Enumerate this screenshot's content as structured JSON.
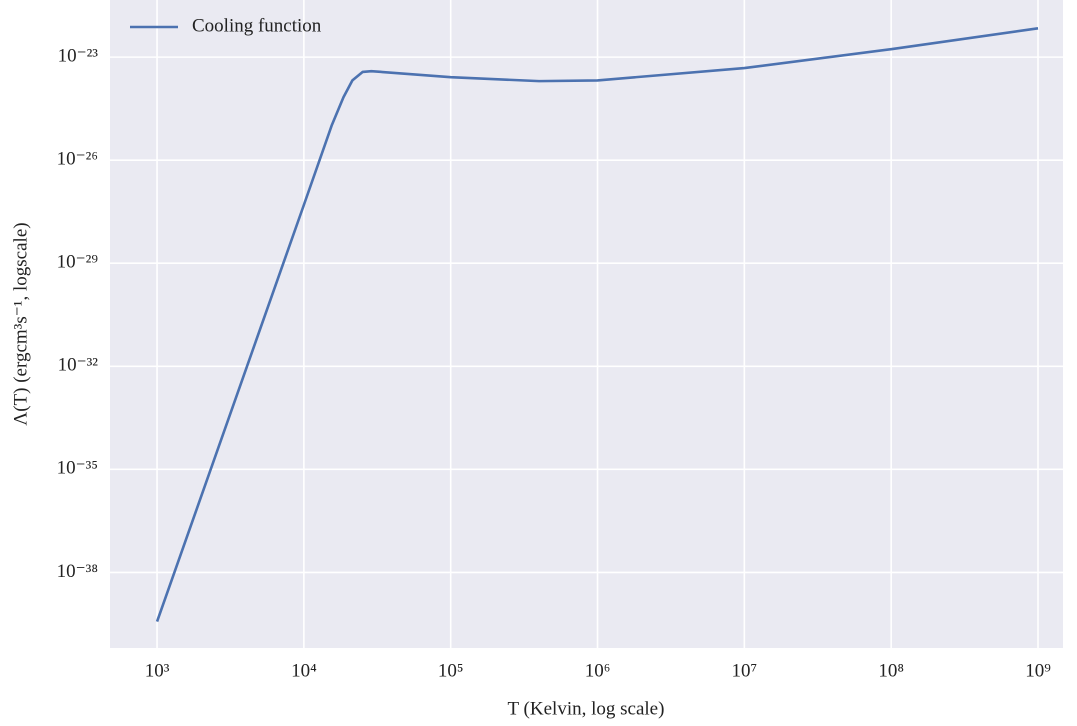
{
  "chart_data": {
    "type": "line",
    "xlabel": "T (Kelvin, log scale)",
    "ylabel": "Λ(T) (ergcm³s⁻¹, logscale)",
    "xscale": "log",
    "yscale": "log",
    "grid": true,
    "legend": "upper left",
    "x": [
      1000,
      10000,
      15500,
      18600,
      21400,
      25100,
      28800,
      100000,
      400000,
      1000000,
      10000000,
      100000000,
      1000000000
    ],
    "series": [
      {
        "name": "Cooling function",
        "color": "#4c72b0",
        "values": [
          3.7e-40,
          5e-28,
          1.05e-25,
          6.8e-25,
          2.1e-24,
          3.7e-24,
          3.9e-24,
          2.6e-24,
          2e-24,
          2.1e-24,
          4.8e-24,
          1.7e-23,
          6.9e-23
        ]
      }
    ],
    "xlim": [
      478,
      1480000000.0
    ],
    "ylim": [
      6.3e-41,
      4.6e-22
    ],
    "xticks": [
      {
        "value": 1000,
        "label": "10³"
      },
      {
        "value": 10000,
        "label": "10⁴"
      },
      {
        "value": 100000,
        "label": "10⁵"
      },
      {
        "value": 1000000,
        "label": "10⁶"
      },
      {
        "value": 10000000,
        "label": "10⁷"
      },
      {
        "value": 100000000,
        "label": "10⁸"
      },
      {
        "value": 1000000000,
        "label": "10⁹"
      }
    ],
    "yticks": [
      {
        "value": 1e-38,
        "label": "10⁻³⁸"
      },
      {
        "value": 1e-35,
        "label": "10⁻³⁵"
      },
      {
        "value": 1e-32,
        "label": "10⁻³²"
      },
      {
        "value": 1e-29,
        "label": "10⁻²⁹"
      },
      {
        "value": 1e-26,
        "label": "10⁻²⁶"
      },
      {
        "value": 1e-23,
        "label": "10⁻²³"
      }
    ]
  }
}
